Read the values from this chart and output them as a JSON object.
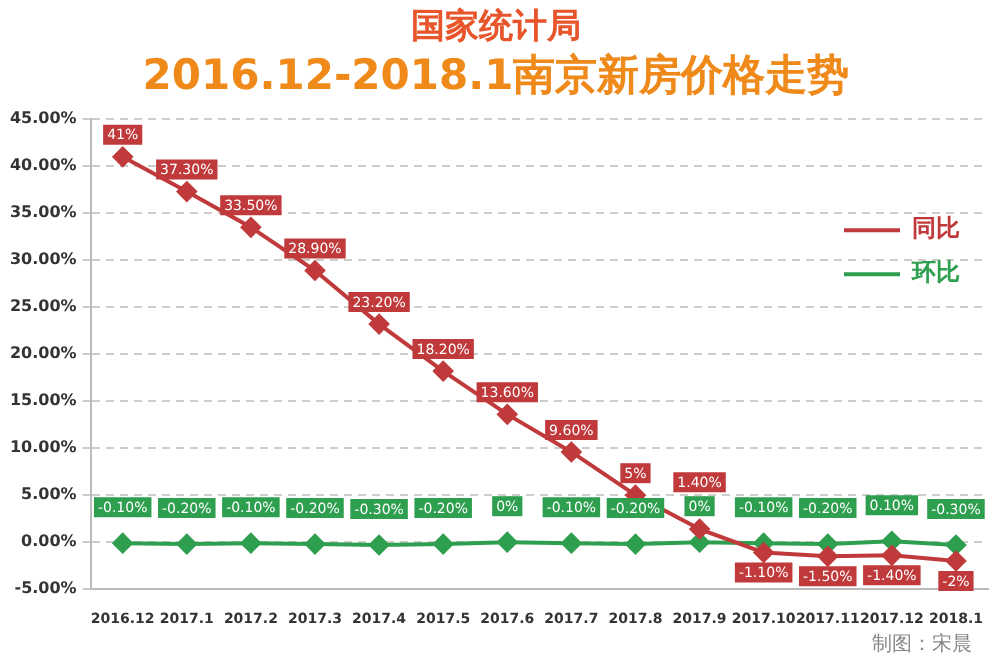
{
  "chart_data": {
    "type": "line",
    "title": "国家统计局",
    "subtitle": "2016.12-2018.1南京新房价格走势",
    "categories": [
      "2016.12",
      "2017.1",
      "2017.2",
      "2017.3",
      "2017.4",
      "2017.5",
      "2017.6",
      "2017.7",
      "2017.8",
      "2017.9",
      "2017.10",
      "2017.11",
      "2017.12",
      "2018.1"
    ],
    "series": [
      {
        "name": "同比",
        "color": "#c0393b",
        "values": [
          41,
          37.3,
          33.5,
          28.9,
          23.2,
          18.2,
          13.6,
          9.6,
          5,
          1.4,
          -1.1,
          -1.5,
          -1.4,
          -2
        ],
        "value_labels": [
          "41%",
          "37.30%",
          "33.50%",
          "28.90%",
          "23.20%",
          "18.20%",
          "13.60%",
          "9.60%",
          "5%",
          "1.40%",
          "-1.10%",
          "-1.50%",
          "-1.40%",
          "-2%"
        ]
      },
      {
        "name": "环比",
        "color": "#2e9e4f",
        "values": [
          -0.1,
          -0.2,
          -0.1,
          -0.2,
          -0.3,
          -0.2,
          0,
          -0.1,
          -0.2,
          0,
          -0.1,
          -0.2,
          0.1,
          -0.3
        ],
        "value_labels": [
          "-0.10%",
          "-0.20%",
          "-0.10%",
          "-0.20%",
          "-0.30%",
          "-0.20%",
          "0%",
          "-0.10%",
          "-0.20%",
          "0%",
          "-0.10%",
          "-0.20%",
          "0.10%",
          "-0.30%"
        ]
      }
    ],
    "ylim": [
      -5,
      45
    ],
    "yticks": [
      {
        "value": -5,
        "label": "-5.00%"
      },
      {
        "value": 0,
        "label": "0.00%"
      },
      {
        "value": 5,
        "label": "5.00%"
      },
      {
        "value": 10,
        "label": "10.00%"
      },
      {
        "value": 15,
        "label": "15.00%"
      },
      {
        "value": 20,
        "label": "20.00%"
      },
      {
        "value": 25,
        "label": "25.00%"
      },
      {
        "value": 30,
        "label": "30.00%"
      },
      {
        "value": 35,
        "label": "35.00%"
      },
      {
        "value": 40,
        "label": "40.00%"
      },
      {
        "value": 45,
        "label": "45.00%"
      }
    ],
    "grid": "y",
    "legend": "right",
    "marker": "diamond",
    "line_style": "solid",
    "annotations": [
      "制图：宋晨"
    ]
  }
}
